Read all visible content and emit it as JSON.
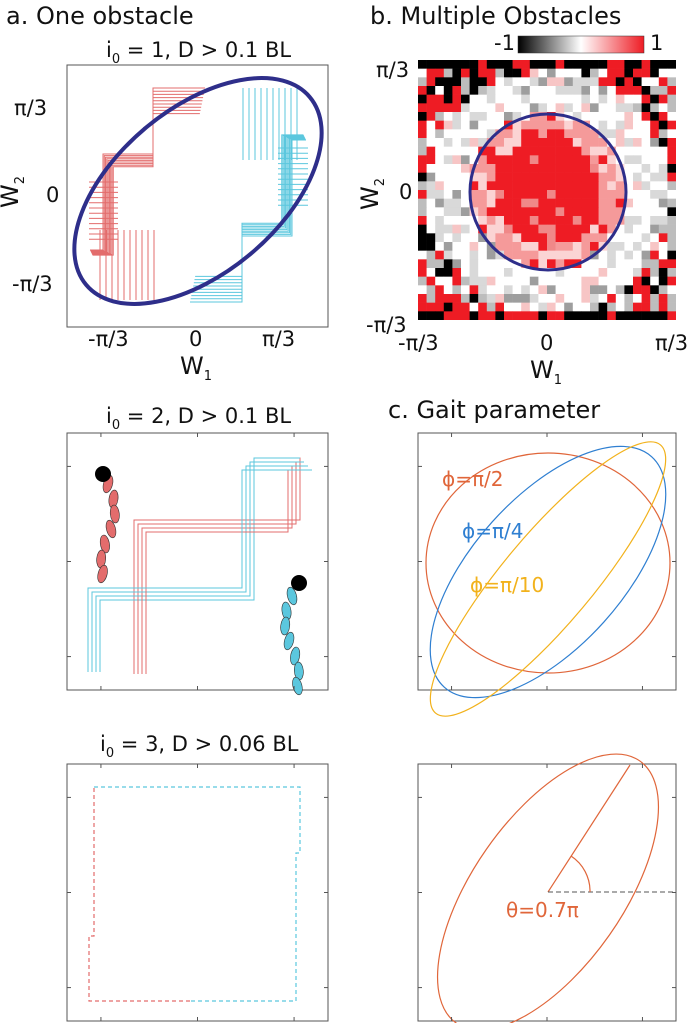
{
  "sections": {
    "a": "a. One obstacle",
    "b": "b. Multiple Obstacles",
    "c": "c. Gait parameter"
  },
  "panels": {
    "a1": {
      "title_pre": "i",
      "title_sub": "0",
      "title_post": " = 1, D > 0.1 BL"
    },
    "a2": {
      "title_pre": "i",
      "title_sub": "0",
      "title_post": " = 2, D > 0.1 BL"
    },
    "a3": {
      "title_pre": "i",
      "title_sub": "0",
      "title_post": " = 3, D > 0.06 BL"
    }
  },
  "axes_a": {
    "xticks": [
      "-π/3",
      "0",
      "π/3"
    ],
    "yticks": [
      "π/3",
      "0",
      "-π/3"
    ],
    "xlabel_main": "W",
    "xlabel_sub": "1",
    "ylabel_main": "W",
    "ylabel_sub": "2"
  },
  "axes_b": {
    "xticks": [
      "-π/3",
      "0",
      "π/3"
    ],
    "yticks": [
      "π/3",
      "0",
      "-π/3"
    ],
    "xlabel_main": "W",
    "xlabel_sub": "1",
    "ylabel_main": "W",
    "ylabel_sub": "2",
    "colorbar_min": "-1",
    "colorbar_max": "1"
  },
  "gait_labels": {
    "phi1": "ϕ=π/2",
    "phi2": "ϕ=π/4",
    "phi3": "ϕ=π/10",
    "theta": "θ=0.7π"
  },
  "colors": {
    "red": "#e36c6c",
    "cyan": "#5bc7de",
    "navy": "#2e2e8a",
    "orange": "#e0663a",
    "blue": "#2f7fd1",
    "yellow": "#f2b21c"
  }
}
